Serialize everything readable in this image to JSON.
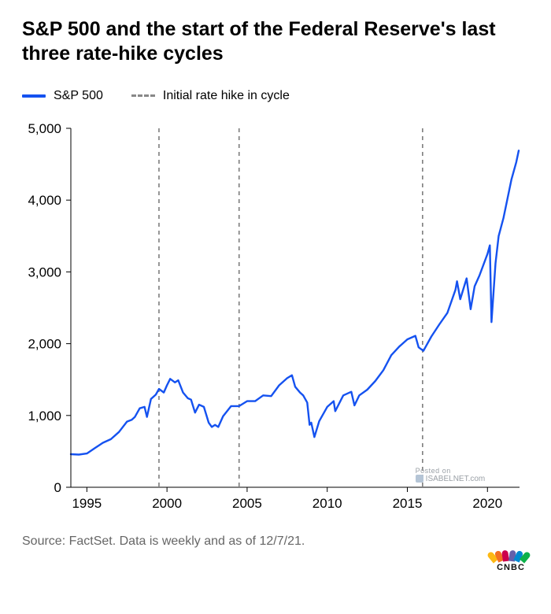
{
  "title": "S&P 500 and the start of the Federal Reserve's last three rate-hike cycles",
  "legend": {
    "series_label": "S&P 500",
    "dashed_label": "Initial rate hike in cycle"
  },
  "chart": {
    "type": "line",
    "background_color": "#ffffff",
    "line_color": "#1552f0",
    "line_width": 2.4,
    "dashed_line_color": "#7d7d7d",
    "dashed_line_width": 1.6,
    "dash_pattern": "5,5",
    "axis_color": "#000000",
    "tick_font_size": 17,
    "x": {
      "min": 1994,
      "max": 2022,
      "ticks": [
        1995,
        2000,
        2005,
        2010,
        2015,
        2020
      ]
    },
    "y": {
      "min": 0,
      "max": 5000,
      "ticks": [
        0,
        1000,
        2000,
        3000,
        4000,
        5000
      ]
    },
    "vertical_lines_x": [
      1999.5,
      2004.5,
      2015.95
    ],
    "series": [
      [
        1994.0,
        460
      ],
      [
        1994.5,
        455
      ],
      [
        1995.0,
        470
      ],
      [
        1995.5,
        545
      ],
      [
        1996.0,
        620
      ],
      [
        1996.5,
        670
      ],
      [
        1997.0,
        770
      ],
      [
        1997.5,
        915
      ],
      [
        1997.8,
        940
      ],
      [
        1998.0,
        980
      ],
      [
        1998.3,
        1100
      ],
      [
        1998.6,
        1120
      ],
      [
        1998.75,
        980
      ],
      [
        1999.0,
        1230
      ],
      [
        1999.3,
        1290
      ],
      [
        1999.5,
        1370
      ],
      [
        1999.8,
        1320
      ],
      [
        2000.0,
        1420
      ],
      [
        2000.2,
        1510
      ],
      [
        2000.5,
        1460
      ],
      [
        2000.7,
        1490
      ],
      [
        2001.0,
        1320
      ],
      [
        2001.3,
        1240
      ],
      [
        2001.5,
        1220
      ],
      [
        2001.75,
        1040
      ],
      [
        2002.0,
        1150
      ],
      [
        2002.3,
        1120
      ],
      [
        2002.6,
        900
      ],
      [
        2002.8,
        840
      ],
      [
        2003.0,
        870
      ],
      [
        2003.2,
        840
      ],
      [
        2003.5,
        990
      ],
      [
        2004.0,
        1130
      ],
      [
        2004.5,
        1130
      ],
      [
        2005.0,
        1200
      ],
      [
        2005.5,
        1200
      ],
      [
        2006.0,
        1280
      ],
      [
        2006.5,
        1270
      ],
      [
        2007.0,
        1420
      ],
      [
        2007.5,
        1520
      ],
      [
        2007.8,
        1560
      ],
      [
        2008.0,
        1400
      ],
      [
        2008.3,
        1320
      ],
      [
        2008.5,
        1280
      ],
      [
        2008.75,
        1180
      ],
      [
        2008.9,
        870
      ],
      [
        2009.0,
        900
      ],
      [
        2009.2,
        700
      ],
      [
        2009.5,
        920
      ],
      [
        2010.0,
        1120
      ],
      [
        2010.4,
        1200
      ],
      [
        2010.5,
        1060
      ],
      [
        2011.0,
        1280
      ],
      [
        2011.5,
        1330
      ],
      [
        2011.7,
        1140
      ],
      [
        2012.0,
        1280
      ],
      [
        2012.5,
        1360
      ],
      [
        2013.0,
        1480
      ],
      [
        2013.5,
        1630
      ],
      [
        2014.0,
        1840
      ],
      [
        2014.5,
        1960
      ],
      [
        2015.0,
        2060
      ],
      [
        2015.5,
        2110
      ],
      [
        2015.7,
        1950
      ],
      [
        2016.0,
        1900
      ],
      [
        2016.5,
        2100
      ],
      [
        2017.0,
        2270
      ],
      [
        2017.5,
        2430
      ],
      [
        2018.0,
        2750
      ],
      [
        2018.1,
        2870
      ],
      [
        2018.3,
        2620
      ],
      [
        2018.7,
        2910
      ],
      [
        2018.95,
        2480
      ],
      [
        2019.2,
        2800
      ],
      [
        2019.5,
        2950
      ],
      [
        2020.0,
        3250
      ],
      [
        2020.15,
        3370
      ],
      [
        2020.25,
        2300
      ],
      [
        2020.5,
        3120
      ],
      [
        2020.7,
        3500
      ],
      [
        2021.0,
        3750
      ],
      [
        2021.5,
        4290
      ],
      [
        2021.8,
        4530
      ],
      [
        2021.95,
        4690
      ]
    ]
  },
  "watermark": {
    "line1": "Posted on",
    "line2": "ISABELNET.com"
  },
  "source": "Source: FactSet. Data is weekly and as of 12/7/21.",
  "logo": {
    "text": "CNBC",
    "peacock_colors": [
      "#fdb813",
      "#f37021",
      "#cc004c",
      "#6460aa",
      "#0089d0",
      "#0db14b"
    ]
  }
}
